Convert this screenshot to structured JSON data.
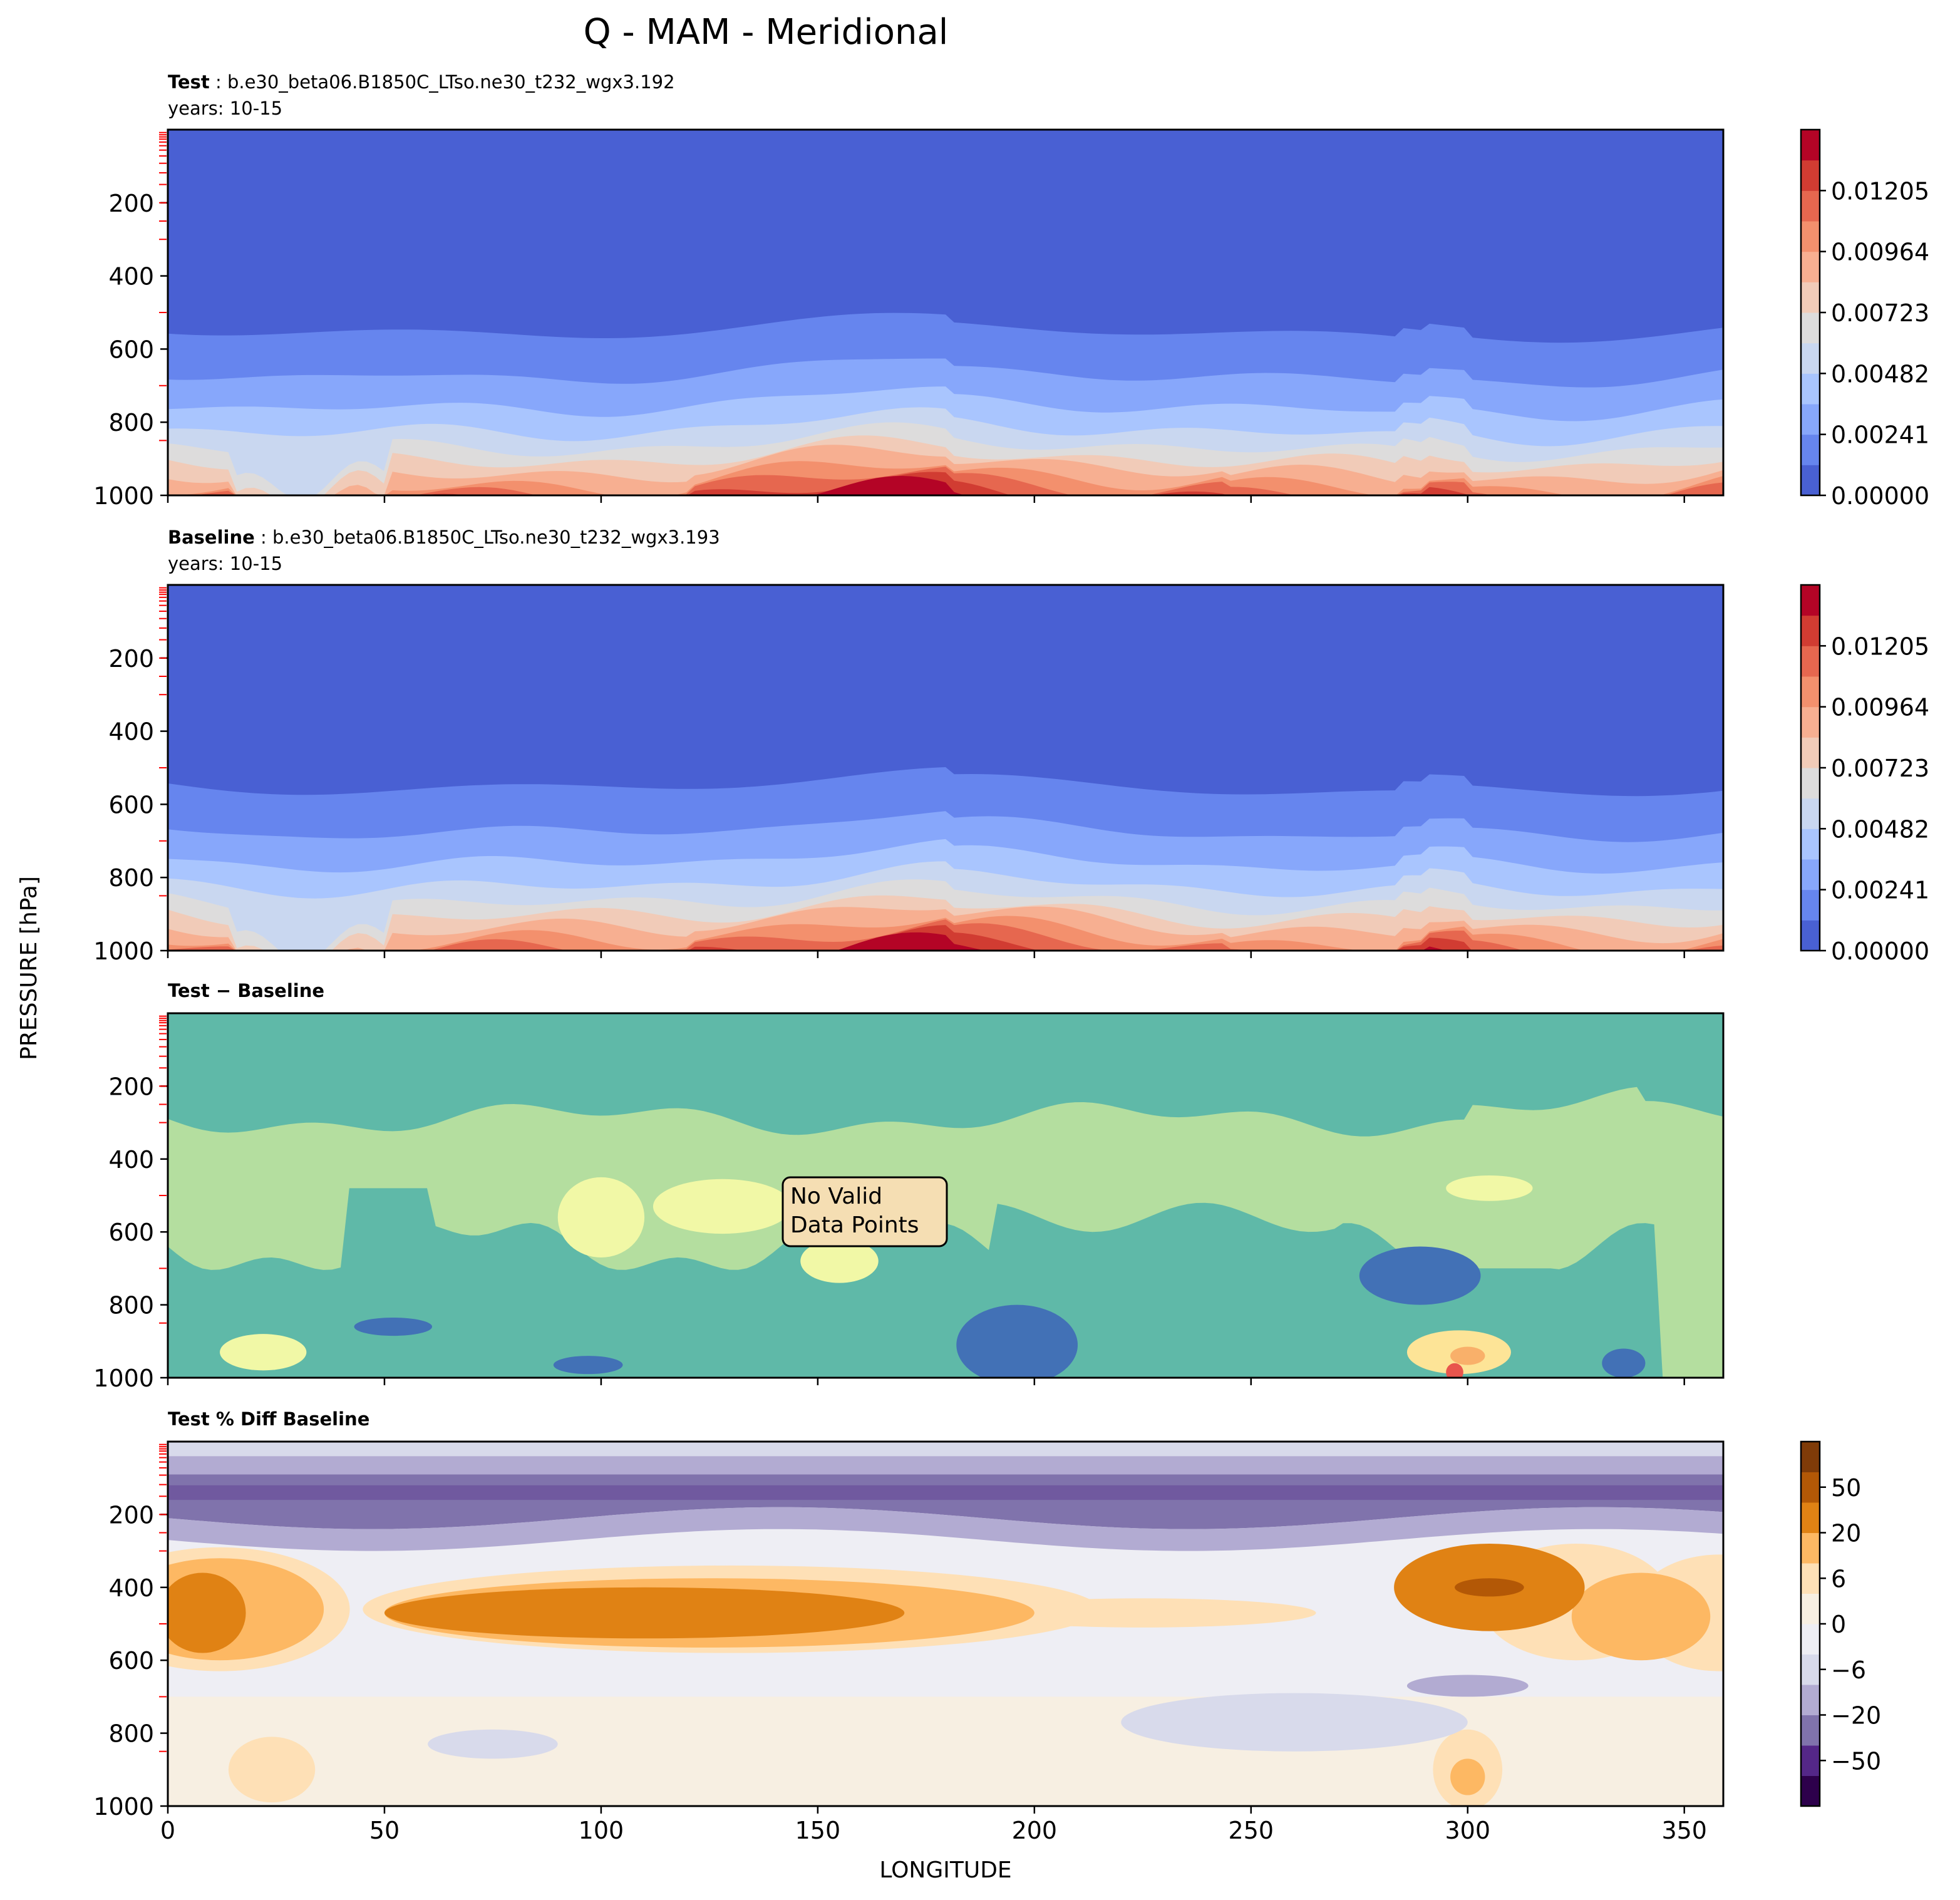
{
  "figure": {
    "title": "Q - MAM - Meridional",
    "ylabel": "PRESSURE [hPa]",
    "xlabel": "LONGITUDE"
  },
  "chart_data": [
    {
      "type": "heatmap",
      "id": "test",
      "title_bold": "Test",
      "title_rest": " : b.e30_beta06.B1850C_LTso.ne30_t232_wgx3.192",
      "subtitle": "years: 10-15",
      "x_ticks": [
        0,
        50,
        100,
        150,
        200,
        250,
        300,
        350
      ],
      "x_tick_labels_shown": false,
      "xlim": [
        0,
        359
      ],
      "y_ticks": [
        200,
        400,
        600,
        800,
        1000
      ],
      "ylim": [
        1000,
        0
      ],
      "y_scale": "linear, inverted",
      "colormap": "coolwarm",
      "colorbar_ticks": [
        "0.00000",
        "0.00241",
        "0.00482",
        "0.00723",
        "0.00964",
        "0.01205"
      ],
      "colorbar_levels": [
        "#4960d3",
        "#6685ee",
        "#87a7fb",
        "#a9c5fe",
        "#c9d7f0",
        "#dddcdc",
        "#f1cbb8",
        "#f7af91",
        "#f3906d",
        "#e6674f",
        "#d13c32",
        "#b40426"
      ],
      "surface_levels": [
        0.0,
        0.00121,
        0.00241,
        0.00361,
        0.00482,
        0.00602,
        0.00723,
        0.00843,
        0.00964,
        0.01084,
        0.01205,
        0.01325
      ]
    },
    {
      "type": "heatmap",
      "id": "baseline",
      "title_bold": "Baseline",
      "title_rest": " : b.e30_beta06.B1850C_LTso.ne30_t232_wgx3.193",
      "subtitle": "years: 10-15",
      "x_ticks": [
        0,
        50,
        100,
        150,
        200,
        250,
        300,
        350
      ],
      "x_tick_labels_shown": false,
      "xlim": [
        0,
        359
      ],
      "y_ticks": [
        200,
        400,
        600,
        800,
        1000
      ],
      "ylim": [
        1000,
        0
      ],
      "colormap": "coolwarm",
      "colorbar_ticks": [
        "0.00000",
        "0.00241",
        "0.00482",
        "0.00723",
        "0.00964",
        "0.01205"
      ],
      "colorbar_levels": [
        "#4960d3",
        "#6685ee",
        "#87a7fb",
        "#a9c5fe",
        "#c9d7f0",
        "#dddcdc",
        "#f1cbb8",
        "#f7af91",
        "#f3906d",
        "#e6674f",
        "#d13c32",
        "#b40426"
      ]
    },
    {
      "type": "heatmap",
      "id": "diff",
      "title": "Test − Baseline",
      "x_ticks": [
        0,
        50,
        100,
        150,
        200,
        250,
        300,
        350
      ],
      "x_tick_labels_shown": false,
      "xlim": [
        0,
        359
      ],
      "y_ticks": [
        200,
        400,
        600,
        800,
        1000
      ],
      "ylim": [
        1000,
        0
      ],
      "annotation": [
        "No Valid",
        "Data Points"
      ],
      "colorbar": "none",
      "fill_colors": [
        "#4271b6",
        "#5fb9a8",
        "#b4de9f",
        "#f1f8a6",
        "#fde497",
        "#f9b06a",
        "#e8554d"
      ]
    },
    {
      "type": "heatmap",
      "id": "pctdiff",
      "title": "Test % Diff Baseline",
      "x_ticks": [
        0,
        50,
        100,
        150,
        200,
        250,
        300,
        350
      ],
      "x_tick_labels": [
        "0",
        "50",
        "100",
        "150",
        "200",
        "250",
        "300",
        "350"
      ],
      "xlim": [
        0,
        359
      ],
      "y_ticks": [
        200,
        400,
        600,
        800,
        1000
      ],
      "ylim": [
        1000,
        0
      ],
      "colormap": "PuOr_r",
      "colorbar_ticks": [
        "50",
        "20",
        "6",
        "0",
        "−6",
        "−20",
        "−50"
      ],
      "colorbar_levels": [
        "#2d004b",
        "#542788",
        "#8073ac",
        "#b2abd2",
        "#d8daeb",
        "#eeeef4",
        "#f7efe2",
        "#fee0b6",
        "#fdb863",
        "#e08214",
        "#b35806",
        "#7f3b08"
      ]
    }
  ]
}
